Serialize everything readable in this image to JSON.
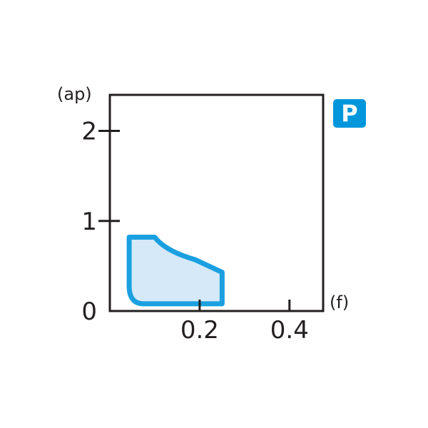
{
  "chart_data": {
    "type": "area",
    "title": "",
    "xlabel": "(f)",
    "ylabel": "(ap)",
    "xlim": [
      0,
      0.475
    ],
    "ylim": [
      0,
      2.4
    ],
    "x_ticks": [
      {
        "value": 0.2,
        "label": "0.2"
      },
      {
        "value": 0.4,
        "label": "0.4"
      }
    ],
    "y_ticks": [
      {
        "value": 0,
        "label": "0"
      },
      {
        "value": 1,
        "label": "1"
      },
      {
        "value": 2,
        "label": "2"
      }
    ],
    "grid": false,
    "region": {
      "outline": [
        [
          0.043,
          0.82
        ],
        [
          0.1,
          0.82
        ],
        [
          0.14,
          0.68
        ],
        [
          0.19,
          0.57
        ],
        [
          0.25,
          0.43
        ],
        [
          0.25,
          0.08
        ],
        [
          0.075,
          0.08
        ],
        [
          0.05,
          0.15
        ],
        [
          0.043,
          0.28
        ]
      ],
      "fill_color": "#d5e9f8",
      "stroke_color": "#1aa0e0"
    },
    "badge": {
      "label": "P",
      "color": "#0096dc"
    }
  }
}
